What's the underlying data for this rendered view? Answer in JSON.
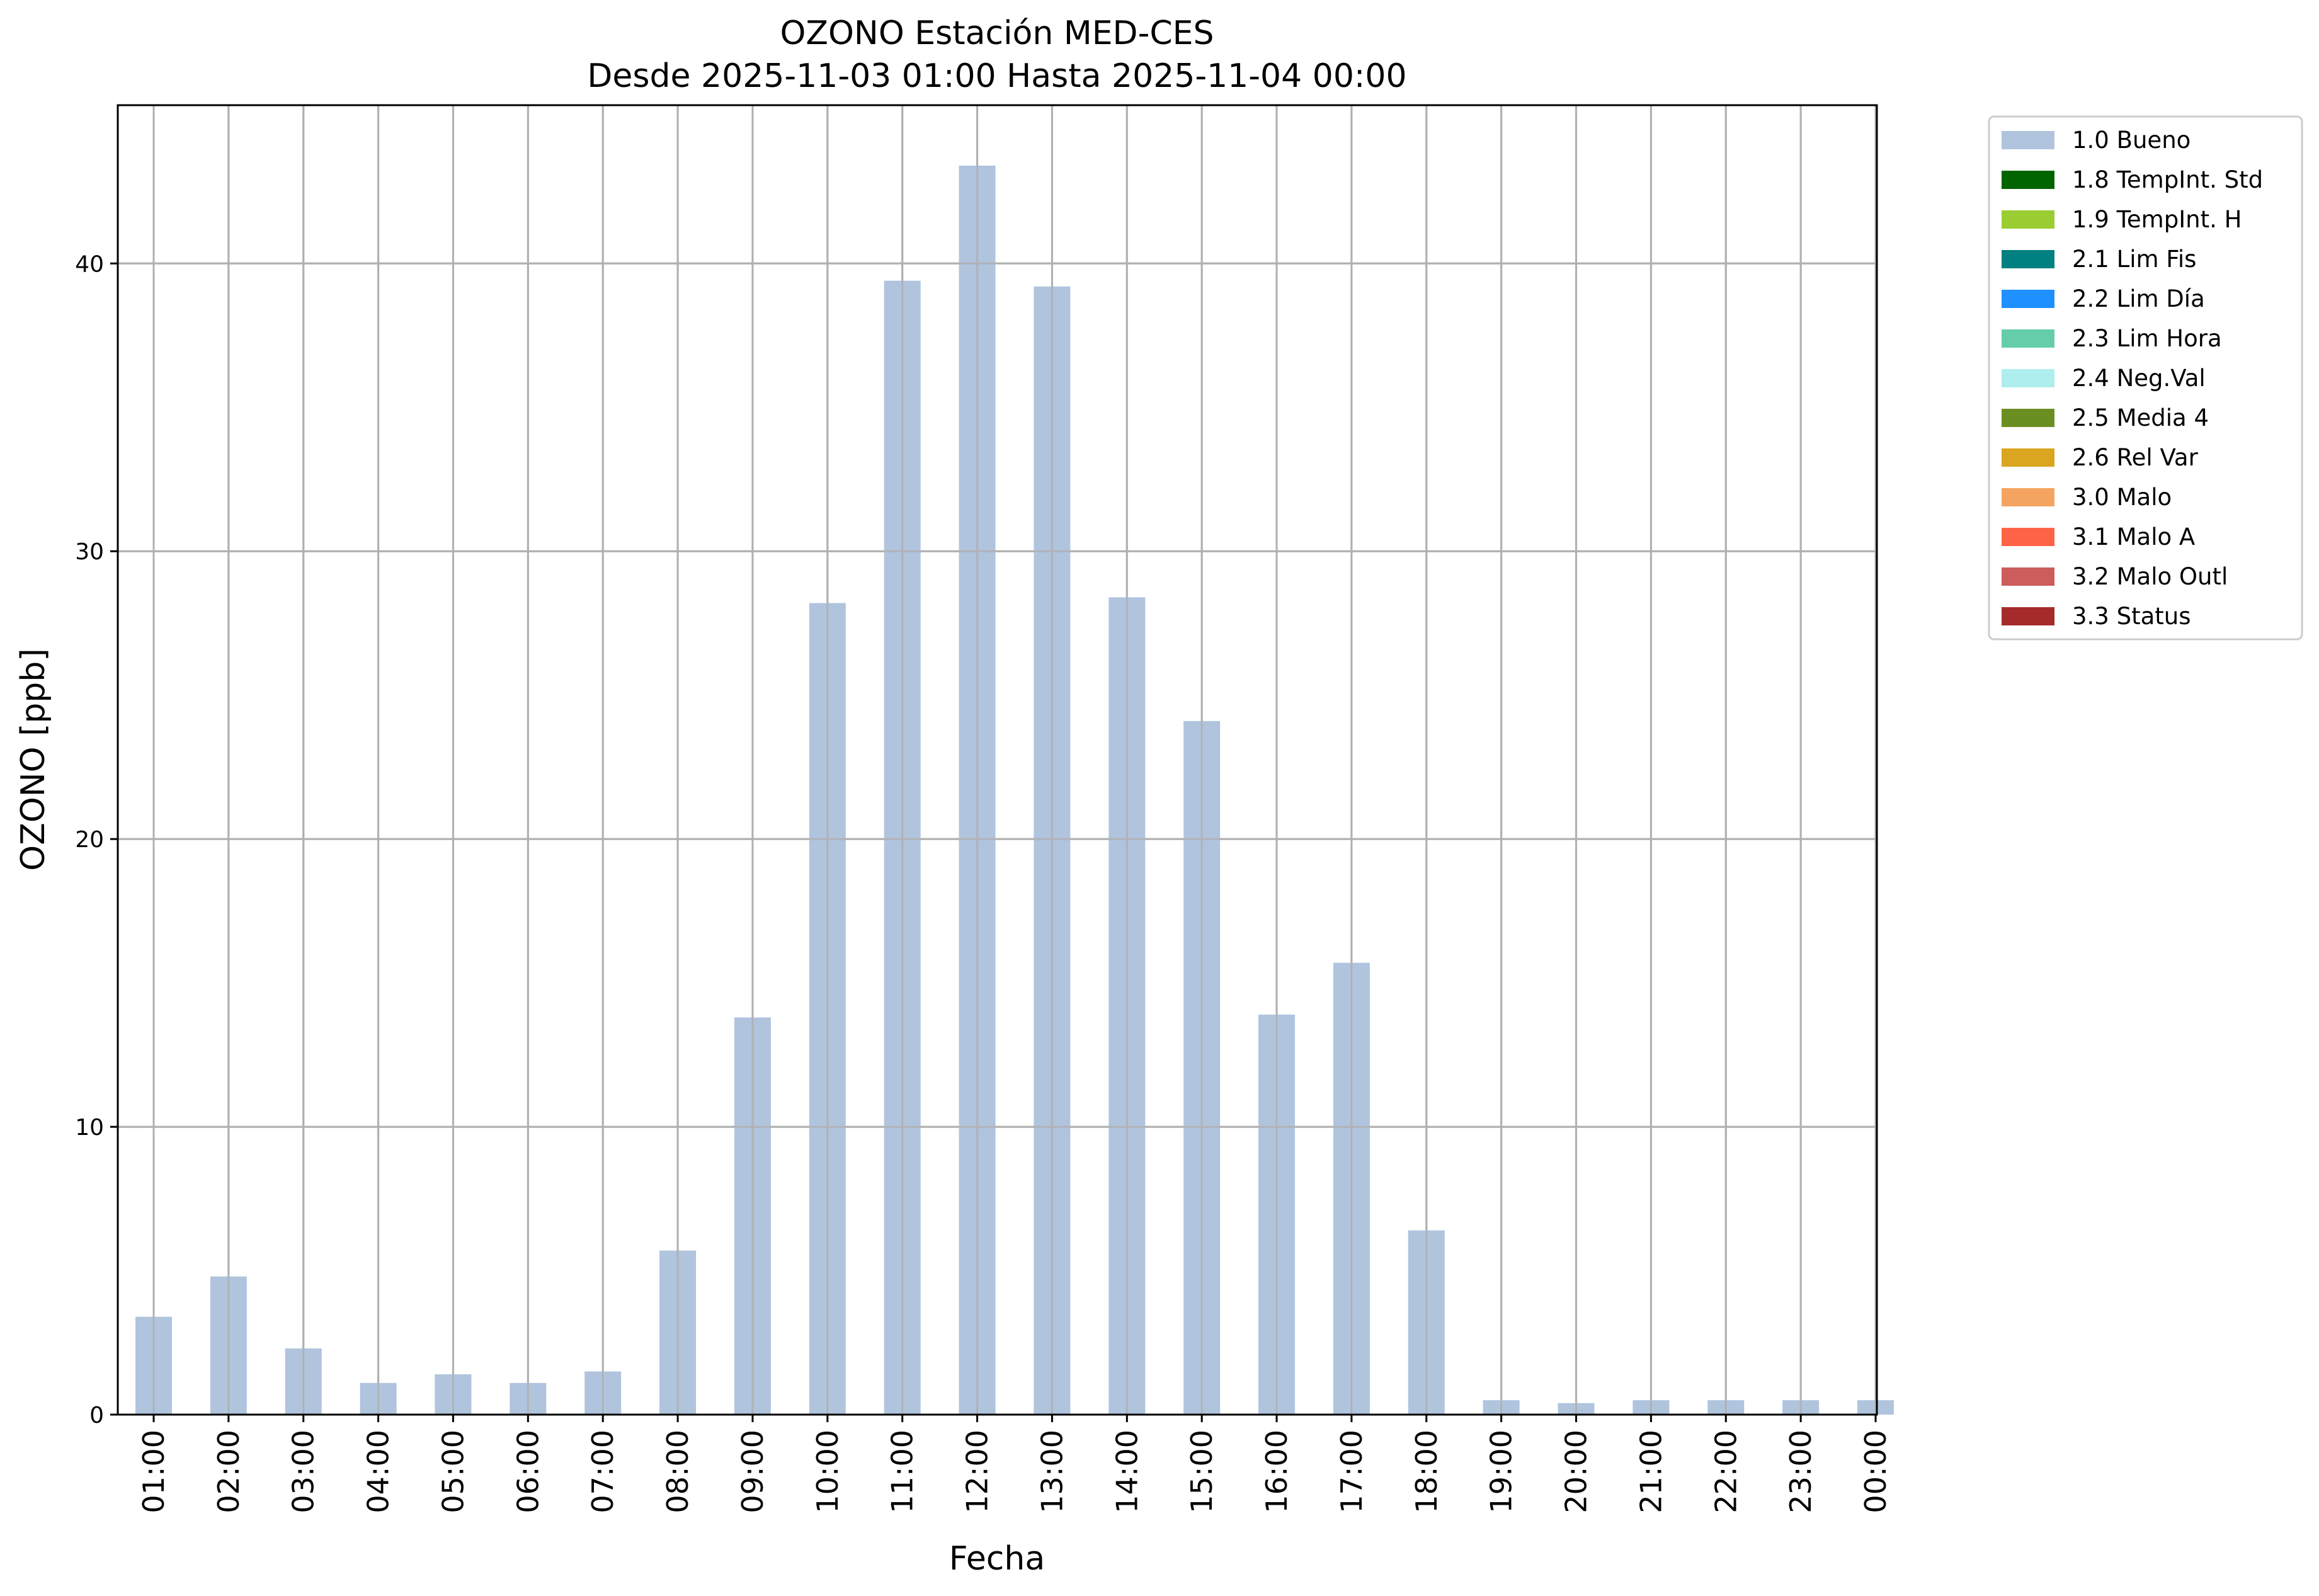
{
  "chart_data": {
    "type": "bar",
    "title": "OZONO Estación MED-CES",
    "subtitle": "Desde 2025-11-03 01:00 Hasta 2025-11-04 00:00",
    "xlabel": "Fecha",
    "ylabel": "OZONO [ppb]",
    "ylim": [
      0,
      45.5
    ],
    "yticks": [
      "0",
      "10",
      "20",
      "30",
      "40"
    ],
    "grid": true,
    "legend_position": "outside top-right",
    "categories": [
      "01:00",
      "02:00",
      "03:00",
      "04:00",
      "05:00",
      "06:00",
      "07:00",
      "08:00",
      "09:00",
      "10:00",
      "11:00",
      "12:00",
      "13:00",
      "14:00",
      "15:00",
      "16:00",
      "17:00",
      "18:00",
      "19:00",
      "20:00",
      "21:00",
      "22:00",
      "23:00",
      "00:00"
    ],
    "series": [
      {
        "name": "1.0 Bueno",
        "color": "#b0c4de",
        "values": [
          3.4,
          4.8,
          2.3,
          1.1,
          1.4,
          1.1,
          1.5,
          5.7,
          13.8,
          28.2,
          39.4,
          43.4,
          39.2,
          28.4,
          24.1,
          13.9,
          15.7,
          6.4,
          0.5,
          0.4,
          0.5,
          0.5,
          0.5,
          0.5
        ]
      }
    ],
    "legend": [
      {
        "label": "1.0 Bueno",
        "color": "#b0c4de"
      },
      {
        "label": "1.8 TempInt. Std",
        "color": "#006400"
      },
      {
        "label": "1.9 TempInt. H",
        "color": "#9acd32"
      },
      {
        "label": "2.1 Lim Fis",
        "color": "#008080"
      },
      {
        "label": "2.2 Lim Día",
        "color": "#1e90ff"
      },
      {
        "label": "2.3 Lim Hora",
        "color": "#66cdaa"
      },
      {
        "label": "2.4 Neg.Val",
        "color": "#afeeee"
      },
      {
        "label": "2.5 Media 4",
        "color": "#6b8e23"
      },
      {
        "label": "2.6 Rel Var",
        "color": "#daa520"
      },
      {
        "label": "3.0 Malo",
        "color": "#f4a460"
      },
      {
        "label": "3.1 Malo A",
        "color": "#ff6347"
      },
      {
        "label": "3.2 Malo Outl",
        "color": "#cd5c5c"
      },
      {
        "label": "3.3 Status",
        "color": "#a52a2a"
      }
    ]
  }
}
